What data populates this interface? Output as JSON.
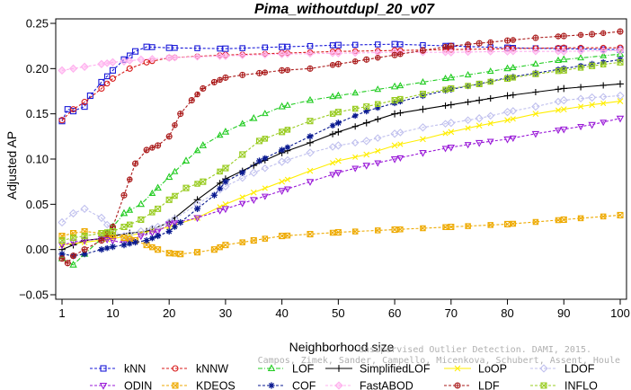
{
  "chart_data": {
    "type": "line",
    "title": "Pima_withoutdupl_20_v07",
    "xlabel": "Neighborhood size",
    "ylabel": "Adjusted AP",
    "xlim": [
      0,
      100
    ],
    "ylim": [
      -0.05,
      0.25
    ],
    "xticks": [
      1,
      10,
      20,
      30,
      40,
      50,
      60,
      70,
      80,
      90,
      100
    ],
    "yticks": [
      -0.05,
      0.0,
      0.05,
      0.1,
      0.15,
      0.2,
      0.25
    ],
    "ytick_labels": [
      "−0.05",
      "0.00",
      "0.05",
      "0.10",
      "0.15",
      "0.20",
      "0.25"
    ],
    "grid": false,
    "legend_position": "bottom",
    "watermark": [
      "Unsupervised Outlier Detection. DAMI, 2015.",
      "Campos, Zimek, Sander, Campello, Micenkova, Schubert, Assent, Houle"
    ],
    "series": [
      {
        "name": "kNN",
        "color": "#1a1ad8",
        "marker": "square",
        "dash": "dash",
        "points": [
          [
            1,
            0.142
          ],
          [
            2,
            0.155
          ],
          [
            3,
            0.153
          ],
          [
            5,
            0.158
          ],
          [
            6,
            0.17
          ],
          [
            8,
            0.185
          ],
          [
            10,
            0.198
          ],
          [
            12,
            0.21
          ],
          [
            14,
            0.219
          ],
          [
            16,
            0.224
          ],
          [
            20,
            0.223
          ],
          [
            30,
            0.222
          ],
          [
            40,
            0.224
          ],
          [
            50,
            0.226
          ],
          [
            60,
            0.227
          ],
          [
            70,
            0.225
          ],
          [
            80,
            0.223
          ],
          [
            90,
            0.222
          ],
          [
            100,
            0.221
          ]
        ]
      },
      {
        "name": "kNNW",
        "color": "#d81a1a",
        "marker": "circle",
        "dash": "dash",
        "points": [
          [
            1,
            0.143
          ],
          [
            3,
            0.155
          ],
          [
            5,
            0.163
          ],
          [
            8,
            0.178
          ],
          [
            10,
            0.189
          ],
          [
            13,
            0.2
          ],
          [
            16,
            0.207
          ],
          [
            20,
            0.212
          ],
          [
            30,
            0.215
          ],
          [
            40,
            0.217
          ],
          [
            50,
            0.219
          ],
          [
            60,
            0.22
          ],
          [
            70,
            0.221
          ],
          [
            80,
            0.222
          ],
          [
            90,
            0.223
          ],
          [
            100,
            0.223
          ]
        ]
      },
      {
        "name": "LOF",
        "color": "#22cc22",
        "marker": "triangle",
        "dash": "dashdot",
        "points": [
          [
            1,
            -0.01
          ],
          [
            3,
            -0.017
          ],
          [
            5,
            -0.005
          ],
          [
            8,
            0.012
          ],
          [
            10,
            0.025
          ],
          [
            12,
            0.04
          ],
          [
            15,
            0.05
          ],
          [
            18,
            0.068
          ],
          [
            20,
            0.08
          ],
          [
            23,
            0.098
          ],
          [
            26,
            0.115
          ],
          [
            30,
            0.13
          ],
          [
            35,
            0.145
          ],
          [
            40,
            0.158
          ],
          [
            45,
            0.165
          ],
          [
            50,
            0.17
          ],
          [
            60,
            0.18
          ],
          [
            70,
            0.19
          ],
          [
            80,
            0.2
          ],
          [
            90,
            0.21
          ],
          [
            100,
            0.216
          ]
        ]
      },
      {
        "name": "SimplifiedLOF",
        "color": "#000000",
        "marker": "plus",
        "dash": "solid",
        "points": [
          [
            1,
            0.0
          ],
          [
            3,
            0.005
          ],
          [
            5,
            0.01
          ],
          [
            8,
            0.012
          ],
          [
            10,
            0.015
          ],
          [
            13,
            0.018
          ],
          [
            16,
            0.02
          ],
          [
            20,
            0.03
          ],
          [
            25,
            0.055
          ],
          [
            30,
            0.078
          ],
          [
            35,
            0.093
          ],
          [
            40,
            0.107
          ],
          [
            45,
            0.118
          ],
          [
            50,
            0.13
          ],
          [
            55,
            0.14
          ],
          [
            60,
            0.15
          ],
          [
            65,
            0.155
          ],
          [
            70,
            0.16
          ],
          [
            75,
            0.165
          ],
          [
            80,
            0.17
          ],
          [
            90,
            0.178
          ],
          [
            100,
            0.183
          ]
        ]
      },
      {
        "name": "LoOP",
        "color": "#ffee00",
        "marker": "x",
        "dash": "solid",
        "points": [
          [
            1,
            0.005
          ],
          [
            5,
            0.008
          ],
          [
            10,
            0.012
          ],
          [
            15,
            0.018
          ],
          [
            20,
            0.025
          ],
          [
            25,
            0.035
          ],
          [
            30,
            0.05
          ],
          [
            35,
            0.063
          ],
          [
            40,
            0.075
          ],
          [
            45,
            0.087
          ],
          [
            50,
            0.098
          ],
          [
            55,
            0.105
          ],
          [
            60,
            0.115
          ],
          [
            65,
            0.122
          ],
          [
            70,
            0.13
          ],
          [
            75,
            0.137
          ],
          [
            80,
            0.143
          ],
          [
            85,
            0.15
          ],
          [
            90,
            0.155
          ],
          [
            95,
            0.16
          ],
          [
            100,
            0.164
          ]
        ]
      },
      {
        "name": "LDOF",
        "color": "#c0c0ee",
        "marker": "diamond",
        "dash": "dash",
        "points": [
          [
            1,
            0.03
          ],
          [
            3,
            0.04
          ],
          [
            5,
            0.045
          ],
          [
            8,
            0.035
          ],
          [
            10,
            0.02
          ],
          [
            12,
            0.015
          ],
          [
            15,
            0.02
          ],
          [
            18,
            0.025
          ],
          [
            20,
            0.03
          ],
          [
            25,
            0.05
          ],
          [
            30,
            0.07
          ],
          [
            35,
            0.085
          ],
          [
            40,
            0.097
          ],
          [
            45,
            0.107
          ],
          [
            50,
            0.115
          ],
          [
            55,
            0.12
          ],
          [
            60,
            0.128
          ],
          [
            65,
            0.135
          ],
          [
            70,
            0.14
          ],
          [
            75,
            0.145
          ],
          [
            80,
            0.152
          ],
          [
            85,
            0.158
          ],
          [
            90,
            0.165
          ],
          [
            95,
            0.168
          ],
          [
            100,
            0.17
          ]
        ]
      },
      {
        "name": "ODIN",
        "color": "#9a1ad8",
        "marker": "triangle-down",
        "dash": "dash",
        "points": [
          [
            1,
            0.005
          ],
          [
            3,
            0.008
          ],
          [
            5,
            0.01
          ],
          [
            8,
            0.012
          ],
          [
            10,
            0.01
          ],
          [
            12,
            0.007
          ],
          [
            15,
            0.015
          ],
          [
            18,
            0.02
          ],
          [
            20,
            0.028
          ],
          [
            25,
            0.035
          ],
          [
            30,
            0.045
          ],
          [
            35,
            0.055
          ],
          [
            40,
            0.065
          ],
          [
            45,
            0.075
          ],
          [
            50,
            0.085
          ],
          [
            55,
            0.093
          ],
          [
            60,
            0.1
          ],
          [
            65,
            0.107
          ],
          [
            70,
            0.113
          ],
          [
            75,
            0.118
          ],
          [
            80,
            0.122
          ],
          [
            85,
            0.128
          ],
          [
            90,
            0.133
          ],
          [
            95,
            0.138
          ],
          [
            100,
            0.145
          ]
        ]
      },
      {
        "name": "KDEOS",
        "color": "#eeaa00",
        "marker": "square-x",
        "dash": "dash",
        "points": [
          [
            1,
            0.015
          ],
          [
            3,
            0.018
          ],
          [
            5,
            0.02
          ],
          [
            8,
            0.018
          ],
          [
            10,
            0.016
          ],
          [
            12,
            0.013
          ],
          [
            14,
            0.01
          ],
          [
            16,
            0.005
          ],
          [
            18,
            0.0
          ],
          [
            20,
            -0.004
          ],
          [
            22,
            -0.005
          ],
          [
            25,
            -0.003
          ],
          [
            28,
            0.0
          ],
          [
            30,
            0.005
          ],
          [
            35,
            0.01
          ],
          [
            40,
            0.015
          ],
          [
            45,
            0.017
          ],
          [
            50,
            0.019
          ],
          [
            60,
            0.022
          ],
          [
            70,
            0.025
          ],
          [
            80,
            0.028
          ],
          [
            90,
            0.033
          ],
          [
            100,
            0.038
          ]
        ]
      },
      {
        "name": "COF",
        "color": "#0a1a90",
        "marker": "asterisk",
        "dash": "dash",
        "points": [
          [
            1,
            -0.005
          ],
          [
            3,
            -0.007
          ],
          [
            5,
            -0.005
          ],
          [
            8,
            0.0
          ],
          [
            10,
            0.003
          ],
          [
            12,
            0.005
          ],
          [
            14,
            0.008
          ],
          [
            16,
            0.01
          ],
          [
            18,
            0.015
          ],
          [
            20,
            0.02
          ],
          [
            22,
            0.03
          ],
          [
            25,
            0.045
          ],
          [
            28,
            0.06
          ],
          [
            30,
            0.075
          ],
          [
            33,
            0.085
          ],
          [
            36,
            0.098
          ],
          [
            40,
            0.11
          ],
          [
            45,
            0.125
          ],
          [
            50,
            0.14
          ],
          [
            55,
            0.153
          ],
          [
            60,
            0.162
          ],
          [
            65,
            0.17
          ],
          [
            70,
            0.177
          ],
          [
            75,
            0.183
          ],
          [
            80,
            0.19
          ],
          [
            85,
            0.195
          ],
          [
            90,
            0.2
          ],
          [
            95,
            0.205
          ],
          [
            100,
            0.21
          ]
        ]
      },
      {
        "name": "FastABOD",
        "color": "#ffb0ee",
        "marker": "diamond-filled",
        "dash": "dash",
        "points": [
          [
            1,
            0.198
          ],
          [
            3,
            0.2
          ],
          [
            5,
            0.202
          ],
          [
            8,
            0.205
          ],
          [
            10,
            0.207
          ],
          [
            12,
            0.208
          ],
          [
            15,
            0.21
          ],
          [
            20,
            0.212
          ],
          [
            30,
            0.214
          ],
          [
            40,
            0.216
          ],
          [
            50,
            0.217
          ],
          [
            60,
            0.218
          ],
          [
            70,
            0.218
          ],
          [
            80,
            0.219
          ],
          [
            90,
            0.219
          ],
          [
            100,
            0.22
          ]
        ]
      },
      {
        "name": "LDF",
        "color": "#aa1a1a",
        "marker": "circle-plus",
        "dash": "dash",
        "points": [
          [
            1,
            -0.01
          ],
          [
            2,
            -0.015
          ],
          [
            3,
            -0.007
          ],
          [
            5,
            0.0
          ],
          [
            8,
            0.01
          ],
          [
            10,
            0.025
          ],
          [
            12,
            0.06
          ],
          [
            14,
            0.095
          ],
          [
            16,
            0.11
          ],
          [
            18,
            0.115
          ],
          [
            20,
            0.125
          ],
          [
            22,
            0.15
          ],
          [
            24,
            0.165
          ],
          [
            26,
            0.178
          ],
          [
            28,
            0.185
          ],
          [
            30,
            0.19
          ],
          [
            33,
            0.193
          ],
          [
            36,
            0.195
          ],
          [
            40,
            0.198
          ],
          [
            45,
            0.2
          ],
          [
            50,
            0.205
          ],
          [
            55,
            0.21
          ],
          [
            60,
            0.215
          ],
          [
            65,
            0.22
          ],
          [
            70,
            0.225
          ],
          [
            75,
            0.228
          ],
          [
            80,
            0.231
          ],
          [
            85,
            0.234
          ],
          [
            90,
            0.236
          ],
          [
            95,
            0.238
          ],
          [
            100,
            0.241
          ]
        ]
      },
      {
        "name": "INFLO",
        "color": "#99cc22",
        "marker": "square-x",
        "dash": "dash",
        "points": [
          [
            1,
            0.01
          ],
          [
            3,
            0.013
          ],
          [
            5,
            0.015
          ],
          [
            8,
            0.018
          ],
          [
            10,
            0.02
          ],
          [
            12,
            0.025
          ],
          [
            15,
            0.033
          ],
          [
            18,
            0.045
          ],
          [
            20,
            0.055
          ],
          [
            23,
            0.068
          ],
          [
            26,
            0.075
          ],
          [
            30,
            0.09
          ],
          [
            33,
            0.105
          ],
          [
            36,
            0.12
          ],
          [
            40,
            0.13
          ],
          [
            45,
            0.142
          ],
          [
            50,
            0.152
          ],
          [
            55,
            0.158
          ],
          [
            60,
            0.165
          ],
          [
            65,
            0.172
          ],
          [
            70,
            0.178
          ],
          [
            75,
            0.183
          ],
          [
            80,
            0.189
          ],
          [
            85,
            0.194
          ],
          [
            90,
            0.198
          ],
          [
            95,
            0.203
          ],
          [
            100,
            0.207
          ]
        ]
      }
    ]
  }
}
